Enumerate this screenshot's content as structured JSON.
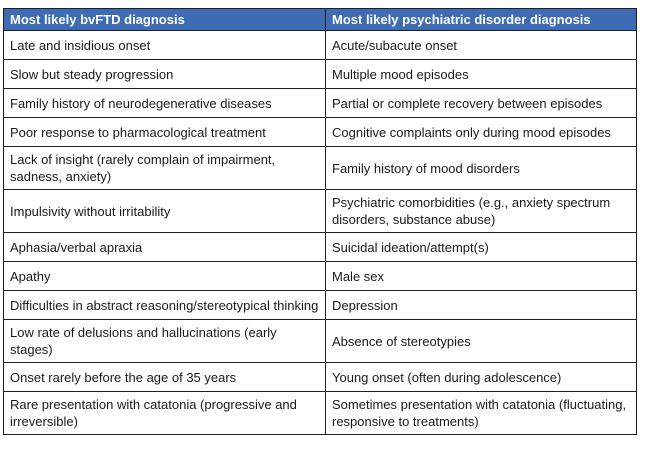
{
  "colors": {
    "header_bg": "#3d6cb5",
    "header_text": "#ffffff",
    "body_text": "#1a1a1a",
    "border": "#1f1f1f"
  },
  "table": {
    "headers": [
      "Most likely bvFTD diagnosis",
      "Most likely psychiatric disorder diagnosis"
    ],
    "rows": [
      [
        "Late and insidious onset",
        "Acute/subacute onset"
      ],
      [
        "Slow but steady progression",
        "Multiple mood episodes"
      ],
      [
        "Family history of neurodegenerative diseases",
        "Partial or complete recovery between episodes"
      ],
      [
        "Poor response to pharmacological treatment",
        "Cognitive complaints only during mood episodes"
      ],
      [
        "Lack of insight (rarely complain of impairment, sadness, anxiety)",
        "Family history of mood disorders"
      ],
      [
        "Impulsivity without irritability",
        "Psychiatric comorbidities (e.g., anxiety spectrum disorders, substance abuse)"
      ],
      [
        "Aphasia/verbal apraxia",
        "Suicidal ideation/attempt(s)"
      ],
      [
        "Apathy",
        "Male sex"
      ],
      [
        "Difficulties in abstract reasoning/stereotypical thinking",
        "Depression"
      ],
      [
        "Low rate of delusions and hallucinations (early stages)",
        "Absence of stereotypies"
      ],
      [
        "Onset rarely before the age of 35 years",
        "Young onset (often during adolescence)"
      ],
      [
        "Rare presentation with catatonia (progressive and irreversible)",
        "Sometimes presentation with catatonia (fluctuating, responsive to treatments)"
      ]
    ]
  }
}
